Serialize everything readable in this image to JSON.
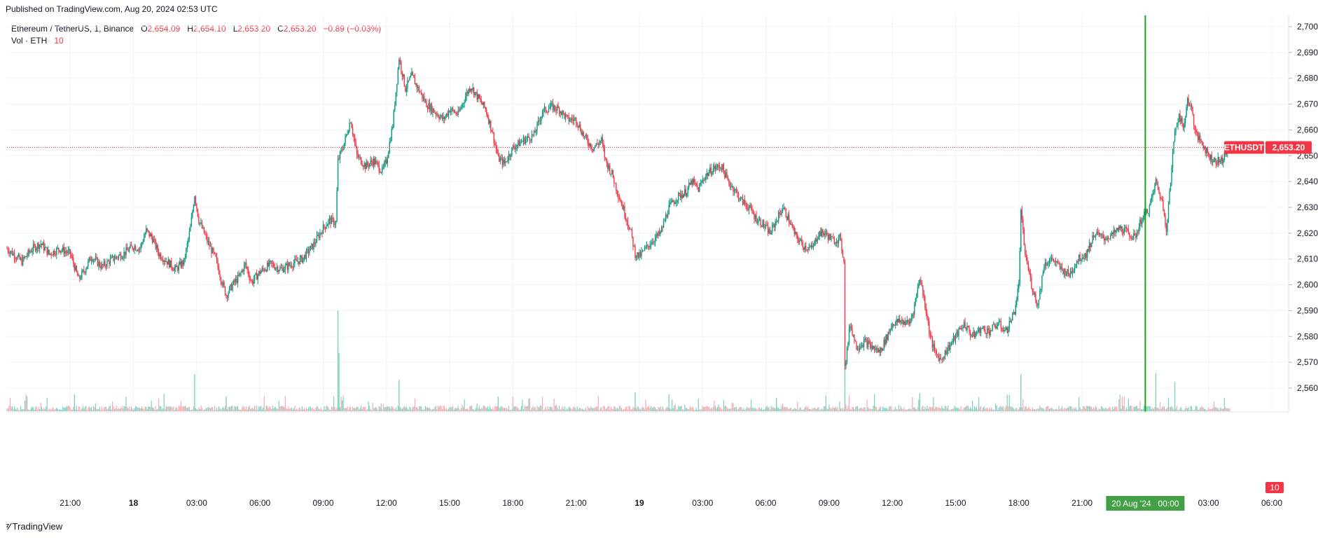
{
  "published": "Published on TradingView.com, Aug 20, 2024 02:53 UTC",
  "legend": {
    "symbol": "Ethereum / TetherUS, 1, Binance",
    "o_label": "O",
    "o_value": "2,654.09",
    "h_label": "H",
    "h_value": "2,654.10",
    "l_label": "L",
    "l_value": "2,653.20",
    "c_label": "C",
    "c_value": "2,653.20",
    "change": "−0.89 (−0.03%)",
    "vol_label": "Vol · ETH",
    "vol_value": "10"
  },
  "footer": {
    "brand": "TradingView"
  },
  "colors": {
    "up": "#089981",
    "down": "#f23645",
    "grid": "#f0f3fa",
    "crosshair": "#1e9e1e",
    "price_label_bg": "#f23645",
    "date_label_bg": "#43a047"
  },
  "chart_data": {
    "type": "candlestick",
    "symbol": "ETHUSDT",
    "interval": "1 minute",
    "exchange": "Binance",
    "current_price": 2653.2,
    "current_price_label": "2,653.20",
    "symbol_label": "ETHUSDT",
    "volume_label": "10",
    "ylim": [
      2552,
      2704
    ],
    "y_ticks": [
      "2,700.00",
      "2,690.00",
      "2,680.00",
      "2,670.00",
      "2,660.00",
      "2,650.00",
      "2,640.00",
      "2,630.00",
      "2,620.00",
      "2,610.00",
      "2,600.00",
      "2,590.00",
      "2,580.00",
      "2,570.00",
      "2,560.00"
    ],
    "y_tick_values": [
      2700,
      2690,
      2680,
      2670,
      2660,
      2650,
      2640,
      2630,
      2620,
      2610,
      2600,
      2590,
      2580,
      2570,
      2560
    ],
    "x_ticks": [
      {
        "label": "21:00",
        "hour": 3,
        "bold": false
      },
      {
        "label": "18",
        "hour": 6,
        "bold": true
      },
      {
        "label": "03:00",
        "hour": 9,
        "bold": false
      },
      {
        "label": "06:00",
        "hour": 12,
        "bold": false
      },
      {
        "label": "09:00",
        "hour": 15,
        "bold": false
      },
      {
        "label": "12:00",
        "hour": 18,
        "bold": false
      },
      {
        "label": "15:00",
        "hour": 21,
        "bold": false
      },
      {
        "label": "18:00",
        "hour": 24,
        "bold": false
      },
      {
        "label": "21:00",
        "hour": 27,
        "bold": false
      },
      {
        "label": "19",
        "hour": 30,
        "bold": true
      },
      {
        "label": "03:00",
        "hour": 33,
        "bold": false
      },
      {
        "label": "06:00",
        "hour": 36,
        "bold": false
      },
      {
        "label": "09:00",
        "hour": 39,
        "bold": false
      },
      {
        "label": "12:00",
        "hour": 42,
        "bold": false
      },
      {
        "label": "15:00",
        "hour": 45,
        "bold": false
      },
      {
        "label": "18:00",
        "hour": 48,
        "bold": false
      },
      {
        "label": "21:00",
        "hour": 51,
        "bold": false
      },
      {
        "label": "03:00",
        "hour": 57,
        "bold": false
      },
      {
        "label": "06:00",
        "hour": 60,
        "bold": false
      }
    ],
    "crosshair_label": "20 Aug '24   00:00",
    "crosshair_hour": 54,
    "price_path": [
      [
        0,
        2614
      ],
      [
        0.3,
        2612
      ],
      [
        0.7,
        2609
      ],
      [
        1.2,
        2614
      ],
      [
        1.6,
        2616
      ],
      [
        2.0,
        2612
      ],
      [
        2.5,
        2614
      ],
      [
        3.0,
        2612
      ],
      [
        3.2,
        2607
      ],
      [
        3.4,
        2602
      ],
      [
        3.7,
        2606
      ],
      [
        4.0,
        2611
      ],
      [
        4.5,
        2607
      ],
      [
        5.0,
        2610
      ],
      [
        5.5,
        2612
      ],
      [
        6.0,
        2615
      ],
      [
        6.3,
        2614
      ],
      [
        6.6,
        2621
      ],
      [
        6.9,
        2618
      ],
      [
        7.2,
        2612
      ],
      [
        7.6,
        2609
      ],
      [
        8.0,
        2606
      ],
      [
        8.4,
        2609
      ],
      [
        8.7,
        2622
      ],
      [
        8.9,
        2635
      ],
      [
        9.1,
        2625
      ],
      [
        9.5,
        2617
      ],
      [
        9.9,
        2610
      ],
      [
        10.2,
        2601
      ],
      [
        10.4,
        2596
      ],
      [
        10.7,
        2600
      ],
      [
        11.0,
        2603
      ],
      [
        11.3,
        2608
      ],
      [
        11.6,
        2601
      ],
      [
        12.0,
        2605
      ],
      [
        12.5,
        2608
      ],
      [
        13.0,
        2606
      ],
      [
        13.5,
        2608
      ],
      [
        14.0,
        2610
      ],
      [
        14.5,
        2615
      ],
      [
        15.0,
        2622
      ],
      [
        15.3,
        2625
      ],
      [
        15.6,
        2624
      ],
      [
        15.7,
        2648
      ],
      [
        16.0,
        2655
      ],
      [
        16.3,
        2664
      ],
      [
        16.6,
        2650
      ],
      [
        17.0,
        2646
      ],
      [
        17.4,
        2648
      ],
      [
        17.8,
        2644
      ],
      [
        18.0,
        2648
      ],
      [
        18.3,
        2662
      ],
      [
        18.6,
        2688
      ],
      [
        18.9,
        2676
      ],
      [
        19.2,
        2681
      ],
      [
        19.5,
        2676
      ],
      [
        19.9,
        2670
      ],
      [
        20.3,
        2667
      ],
      [
        20.7,
        2664
      ],
      [
        21.0,
        2668
      ],
      [
        21.4,
        2666
      ],
      [
        21.8,
        2674
      ],
      [
        22.0,
        2677
      ],
      [
        22.3,
        2673
      ],
      [
        22.7,
        2668
      ],
      [
        23.0,
        2660
      ],
      [
        23.3,
        2649
      ],
      [
        23.6,
        2647
      ],
      [
        24.0,
        2653
      ],
      [
        24.5,
        2656
      ],
      [
        25.0,
        2658
      ],
      [
        25.4,
        2667
      ],
      [
        25.8,
        2669
      ],
      [
        26.2,
        2668
      ],
      [
        26.6,
        2664
      ],
      [
        27.0,
        2664
      ],
      [
        27.4,
        2657
      ],
      [
        27.8,
        2653
      ],
      [
        28.2,
        2656
      ],
      [
        28.4,
        2648
      ],
      [
        28.7,
        2643
      ],
      [
        29.0,
        2635
      ],
      [
        29.3,
        2628
      ],
      [
        29.6,
        2620
      ],
      [
        29.8,
        2612
      ],
      [
        30.0,
        2611
      ],
      [
        30.3,
        2614
      ],
      [
        30.6,
        2617
      ],
      [
        31.0,
        2620
      ],
      [
        31.4,
        2630
      ],
      [
        31.8,
        2634
      ],
      [
        32.2,
        2636
      ],
      [
        32.5,
        2640
      ],
      [
        32.8,
        2637
      ],
      [
        33.1,
        2642
      ],
      [
        33.5,
        2645
      ],
      [
        33.9,
        2646
      ],
      [
        34.2,
        2640
      ],
      [
        34.5,
        2637
      ],
      [
        34.8,
        2633
      ],
      [
        35.2,
        2630
      ],
      [
        35.5,
        2626
      ],
      [
        35.8,
        2624
      ],
      [
        36.2,
        2620
      ],
      [
        36.5,
        2625
      ],
      [
        36.8,
        2630
      ],
      [
        37.1,
        2625
      ],
      [
        37.4,
        2619
      ],
      [
        37.8,
        2615
      ],
      [
        38.2,
        2614
      ],
      [
        38.5,
        2620
      ],
      [
        38.8,
        2620
      ],
      [
        39.2,
        2617
      ],
      [
        39.5,
        2618
      ],
      [
        39.7,
        2610
      ],
      [
        39.75,
        2568
      ],
      [
        40.0,
        2585
      ],
      [
        40.3,
        2576
      ],
      [
        40.7,
        2578
      ],
      [
        41.0,
        2576
      ],
      [
        41.4,
        2574
      ],
      [
        41.8,
        2581
      ],
      [
        42.0,
        2585
      ],
      [
        42.4,
        2586
      ],
      [
        42.8,
        2585
      ],
      [
        43.0,
        2590
      ],
      [
        43.3,
        2603
      ],
      [
        43.5,
        2595
      ],
      [
        43.8,
        2580
      ],
      [
        44.0,
        2574
      ],
      [
        44.3,
        2571
      ],
      [
        44.6,
        2575
      ],
      [
        45.0,
        2580
      ],
      [
        45.4,
        2585
      ],
      [
        45.8,
        2580
      ],
      [
        46.2,
        2583
      ],
      [
        46.6,
        2582
      ],
      [
        47.0,
        2585
      ],
      [
        47.4,
        2582
      ],
      [
        47.8,
        2590
      ],
      [
        48.0,
        2600
      ],
      [
        48.1,
        2628
      ],
      [
        48.3,
        2612
      ],
      [
        48.6,
        2600
      ],
      [
        48.9,
        2592
      ],
      [
        49.2,
        2608
      ],
      [
        49.6,
        2610
      ],
      [
        50.0,
        2606
      ],
      [
        50.4,
        2604
      ],
      [
        50.8,
        2610
      ],
      [
        51.2,
        2612
      ],
      [
        51.6,
        2620
      ],
      [
        52.0,
        2618
      ],
      [
        52.4,
        2619
      ],
      [
        52.8,
        2622
      ],
      [
        53.2,
        2620
      ],
      [
        53.5,
        2618
      ],
      [
        53.8,
        2625
      ],
      [
        54.2,
        2630
      ],
      [
        54.5,
        2640
      ],
      [
        54.8,
        2632
      ],
      [
        55.0,
        2622
      ],
      [
        55.2,
        2640
      ],
      [
        55.4,
        2660
      ],
      [
        55.6,
        2666
      ],
      [
        55.8,
        2660
      ],
      [
        56.0,
        2672
      ],
      [
        56.2,
        2668
      ],
      [
        56.4,
        2658
      ],
      [
        56.7,
        2655
      ],
      [
        57.0,
        2650
      ],
      [
        57.3,
        2648
      ],
      [
        57.6,
        2648
      ],
      [
        57.9,
        2652
      ],
      [
        58.0,
        2653.2
      ]
    ],
    "volume_spikes": [
      {
        "hour": 15.7,
        "value": 900
      },
      {
        "hour": 15.75,
        "value": 520
      },
      {
        "hour": 8.9,
        "value": 330
      },
      {
        "hour": 18.6,
        "value": 280
      },
      {
        "hour": 39.75,
        "value": 450
      },
      {
        "hour": 48.1,
        "value": 330
      },
      {
        "hour": 54.5,
        "value": 340
      },
      {
        "hour": 55.4,
        "value": 260
      },
      {
        "hour": 29.8,
        "value": 170
      },
      {
        "hour": 43.3,
        "value": 160
      },
      {
        "hour": 3.2,
        "value": 150
      },
      {
        "hour": 10.4,
        "value": 130
      },
      {
        "hour": 23.3,
        "value": 130
      },
      {
        "hour": 31.4,
        "value": 150
      },
      {
        "hour": 36.5,
        "value": 120
      }
    ]
  }
}
